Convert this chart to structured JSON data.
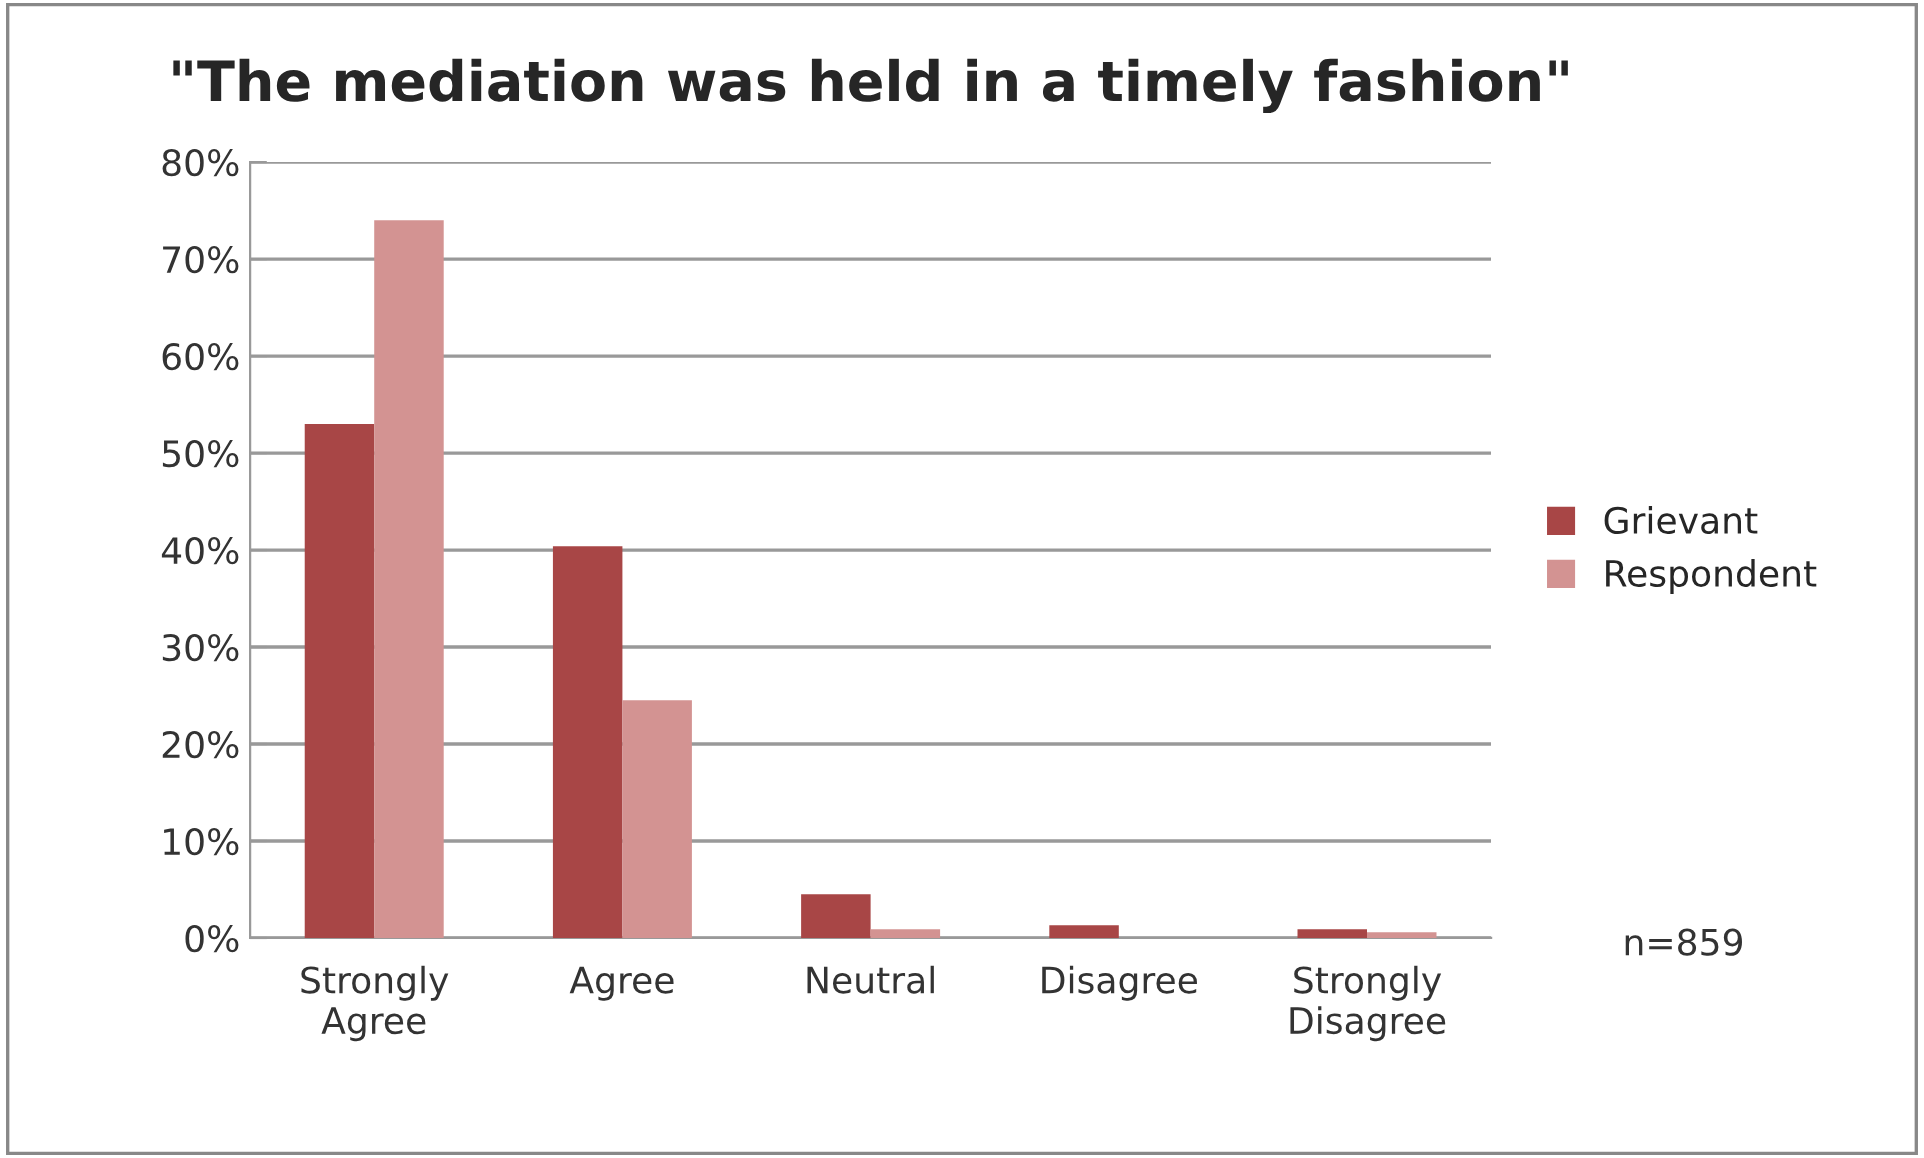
{
  "chart_data": {
    "type": "bar",
    "title": "\"The mediation was held in a timely fashion\"",
    "categories": [
      "Strongly\nAgree",
      "Agree",
      "Neutral",
      "Disagree",
      "Strongly\nDisagree"
    ],
    "series": [
      {
        "name": "Grievant",
        "color": "#a84646",
        "values": [
          53,
          40.4,
          4.5,
          1.3,
          0.9
        ]
      },
      {
        "name": "Respondent",
        "color": "#d39392",
        "values": [
          74,
          24.5,
          0.9,
          null,
          0.6
        ]
      }
    ],
    "ylim": [
      0,
      80
    ],
    "yticks": [
      {
        "value": 0,
        "label": "0%"
      },
      {
        "value": 10,
        "label": "10%"
      },
      {
        "value": 20,
        "label": "20%"
      },
      {
        "value": 30,
        "label": "30%"
      },
      {
        "value": 40,
        "label": "40%"
      },
      {
        "value": 50,
        "label": "50%"
      },
      {
        "value": 60,
        "label": "60%"
      },
      {
        "value": 70,
        "label": "70%"
      },
      {
        "value": 80,
        "label": "80%"
      }
    ],
    "grid": "y",
    "legend": "right",
    "annotations": [
      "n=859"
    ]
  }
}
